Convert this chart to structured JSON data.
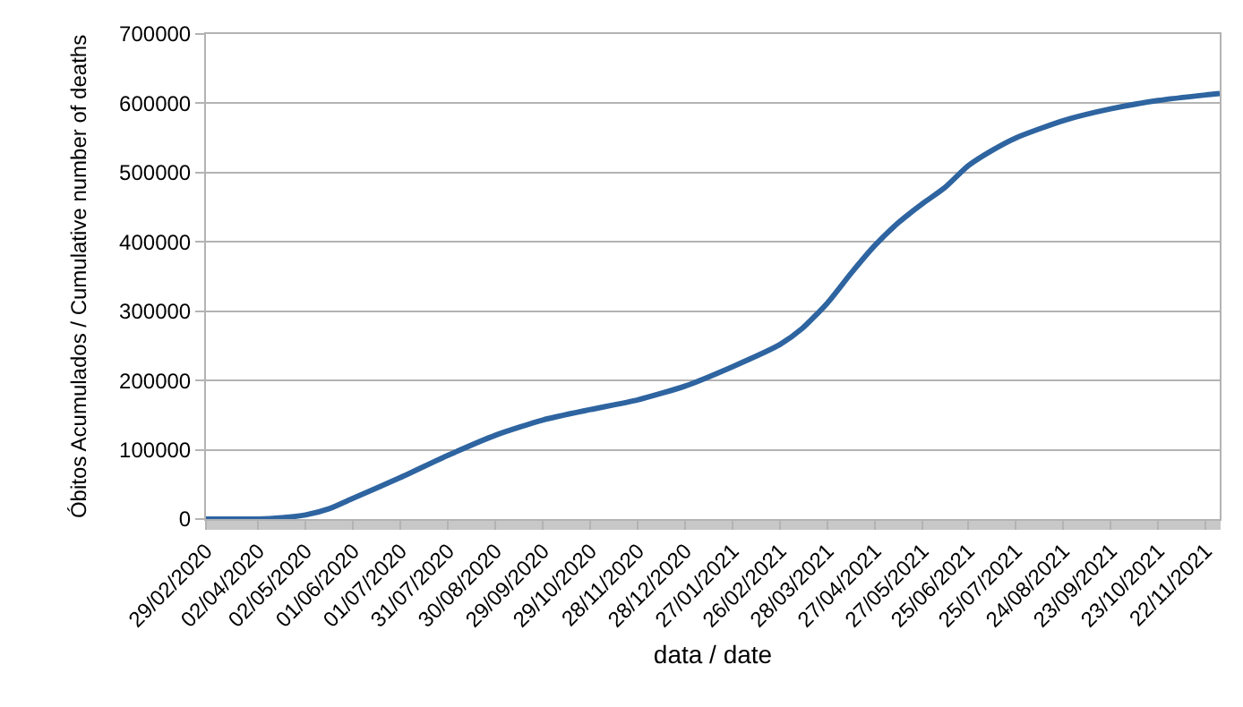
{
  "chart_data": {
    "type": "line",
    "xlabel": "data / date",
    "ylabel": "Óbitos Acumulados / Cumulative number of deaths",
    "x": [
      "2020-02-29",
      "2020-03-20",
      "2020-04-02",
      "2020-04-17",
      "2020-05-02",
      "2020-05-17",
      "2020-06-01",
      "2020-07-01",
      "2020-07-31",
      "2020-08-30",
      "2020-09-29",
      "2020-10-29",
      "2020-11-28",
      "2020-12-28",
      "2021-01-27",
      "2021-02-26",
      "2021-03-12",
      "2021-03-28",
      "2021-04-12",
      "2021-04-27",
      "2021-05-12",
      "2021-05-27",
      "2021-06-10",
      "2021-06-25",
      "2021-07-10",
      "2021-07-25",
      "2021-08-24",
      "2021-09-23",
      "2021-10-23",
      "2021-11-22",
      "2021-12-01"
    ],
    "series": [
      {
        "color": "#2e64a0",
        "values": [
          0,
          0,
          0,
          2000,
          6000,
          15000,
          30000,
          60000,
          92000,
          121000,
          143000,
          158000,
          172000,
          192000,
          220000,
          252000,
          275000,
          312000,
          355000,
          395000,
          428000,
          455000,
          478000,
          510000,
          532000,
          550000,
          575000,
          592000,
          604000,
          612000,
          614000
        ]
      }
    ],
    "xlim": [
      "2020-02-29",
      "2021-12-01"
    ],
    "xticks": [
      {
        "value": "2020-02-29",
        "label": "29/02/2020"
      },
      {
        "value": "2020-04-02",
        "label": "02/04/2020"
      },
      {
        "value": "2020-05-02",
        "label": "02/05/2020"
      },
      {
        "value": "2020-06-01",
        "label": "01/06/2020"
      },
      {
        "value": "2020-07-01",
        "label": "01/07/2020"
      },
      {
        "value": "2020-07-31",
        "label": "31/07/2020"
      },
      {
        "value": "2020-08-30",
        "label": "30/08/2020"
      },
      {
        "value": "2020-09-29",
        "label": "29/09/2020"
      },
      {
        "value": "2020-10-29",
        "label": "29/10/2020"
      },
      {
        "value": "2020-11-28",
        "label": "28/11/2020"
      },
      {
        "value": "2020-12-28",
        "label": "28/12/2020"
      },
      {
        "value": "2021-01-27",
        "label": "27/01/2021"
      },
      {
        "value": "2021-02-26",
        "label": "26/02/2021"
      },
      {
        "value": "2021-03-28",
        "label": "28/03/2021"
      },
      {
        "value": "2021-04-27",
        "label": "27/04/2021"
      },
      {
        "value": "2021-05-27",
        "label": "27/05/2021"
      },
      {
        "value": "2021-06-25",
        "label": "25/06/2021"
      },
      {
        "value": "2021-07-25",
        "label": "25/07/2021"
      },
      {
        "value": "2021-08-24",
        "label": "24/08/2021"
      },
      {
        "value": "2021-09-23",
        "label": "23/09/2021"
      },
      {
        "value": "2021-10-23",
        "label": "23/10/2021"
      },
      {
        "value": "2021-11-22",
        "label": "22/11/2021"
      }
    ],
    "ylim": [
      0,
      700000
    ],
    "yticks": [
      0,
      100000,
      200000,
      300000,
      400000,
      500000,
      600000,
      700000
    ],
    "grid": "y",
    "marker": "none",
    "line_style": "solid"
  }
}
